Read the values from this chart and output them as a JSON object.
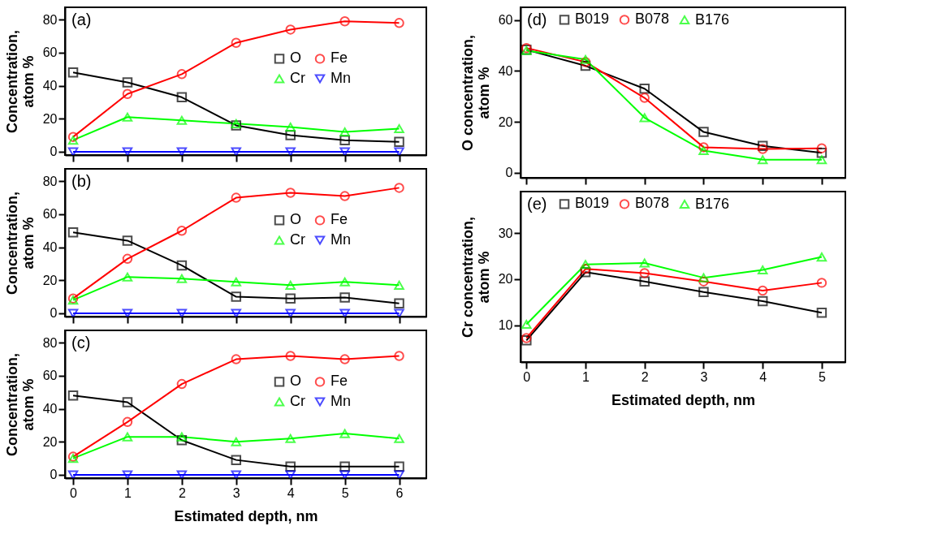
{
  "chart_data": [
    {
      "type": "line",
      "annotations": [
        "(a)"
      ],
      "ylabel": "Concentration, atom %",
      "x": [
        0,
        1,
        2,
        3,
        4,
        5,
        6
      ],
      "xlim": [
        -0.15,
        6.5
      ],
      "xticks": [
        0,
        1,
        2,
        3,
        4,
        5,
        6
      ],
      "ylim": [
        -2,
        87.5
      ],
      "yticks": [
        0,
        20,
        40,
        60,
        80
      ],
      "tick_labels": "y",
      "legend": "right",
      "grid": false,
      "line_style": "solid",
      "series": [
        {
          "name": "O",
          "color": "#000000",
          "marker": "square",
          "values": [
            48,
            42,
            33,
            16,
            10,
            7,
            6
          ]
        },
        {
          "name": "Fe",
          "color": "#ff0000",
          "marker": "circle",
          "values": [
            9,
            35,
            47,
            66,
            74,
            79,
            78
          ]
        },
        {
          "name": "Cr",
          "color": "#00ff00",
          "marker": "triangle",
          "values": [
            7,
            21,
            19,
            17,
            15,
            12,
            14
          ]
        },
        {
          "name": "Mn",
          "color": "#0000ff",
          "marker": "triangle-down",
          "values": [
            0,
            0,
            0,
            0,
            0,
            0,
            0
          ]
        }
      ]
    },
    {
      "type": "line",
      "annotations": [
        "(b)"
      ],
      "ylabel": "Concentration, atom %",
      "x": [
        0,
        1,
        2,
        3,
        4,
        5,
        6
      ],
      "xlim": [
        -0.15,
        6.5
      ],
      "xticks": [
        0,
        1,
        2,
        3,
        4,
        5,
        6
      ],
      "ylim": [
        -2,
        87.5
      ],
      "yticks": [
        0,
        20,
        40,
        60,
        80
      ],
      "tick_labels": "y",
      "legend": "right",
      "grid": false,
      "line_style": "solid",
      "series": [
        {
          "name": "O",
          "color": "#000000",
          "marker": "square",
          "values": [
            49,
            44,
            29,
            10,
            9,
            9.5,
            6
          ]
        },
        {
          "name": "Fe",
          "color": "#ff0000",
          "marker": "circle",
          "values": [
            9,
            33,
            50,
            70,
            73,
            71,
            76
          ]
        },
        {
          "name": "Cr",
          "color": "#00ff00",
          "marker": "triangle",
          "values": [
            8,
            22,
            21,
            19,
            17,
            19,
            17
          ]
        },
        {
          "name": "Mn",
          "color": "#0000ff",
          "marker": "triangle-down",
          "values": [
            0,
            0,
            0,
            0,
            0,
            0,
            0
          ]
        }
      ]
    },
    {
      "type": "line",
      "annotations": [
        "(c)"
      ],
      "ylabel": "Concentration, atom %",
      "xlabel": "Estimated depth, nm",
      "x": [
        0,
        1,
        2,
        3,
        4,
        5,
        6
      ],
      "xlim": [
        -0.15,
        6.5
      ],
      "xticks": [
        0,
        1,
        2,
        3,
        4,
        5,
        6
      ],
      "ylim": [
        -2,
        87.5
      ],
      "yticks": [
        0,
        20,
        40,
        60,
        80
      ],
      "legend": "right",
      "grid": false,
      "line_style": "solid",
      "series": [
        {
          "name": "O",
          "color": "#000000",
          "marker": "square",
          "values": [
            48,
            44,
            21,
            9,
            5,
            5,
            5
          ]
        },
        {
          "name": "Fe",
          "color": "#ff0000",
          "marker": "circle",
          "values": [
            11,
            32,
            55,
            70,
            72,
            70,
            72
          ]
        },
        {
          "name": "Cr",
          "color": "#00ff00",
          "marker": "triangle",
          "values": [
            10,
            23,
            23,
            20,
            22,
            25,
            22
          ]
        },
        {
          "name": "Mn",
          "color": "#0000ff",
          "marker": "triangle-down",
          "values": [
            0,
            0,
            0,
            0,
            0,
            0,
            0
          ]
        }
      ]
    },
    {
      "type": "line",
      "annotations": [
        "(d)"
      ],
      "ylabel": "O concentration, atom %",
      "x": [
        0,
        1,
        2,
        3,
        4,
        5
      ],
      "xlim": [
        -0.1,
        5.4
      ],
      "xticks": [
        0,
        1,
        2,
        3,
        4,
        5
      ],
      "ylim": [
        -2,
        65
      ],
      "yticks": [
        0,
        20,
        40,
        60
      ],
      "tick_labels": "y",
      "legend": "top",
      "grid": false,
      "line_style": "solid",
      "series": [
        {
          "name": "B019",
          "color": "#000000",
          "marker": "square",
          "values": [
            48.3,
            42,
            33,
            16,
            10.5,
            7.8
          ]
        },
        {
          "name": "B078",
          "color": "#ff0000",
          "marker": "circle",
          "values": [
            49,
            43.5,
            29.4,
            10,
            9.3,
            9.6
          ]
        },
        {
          "name": "B176",
          "color": "#00ff00",
          "marker": "triangle",
          "values": [
            48,
            44.5,
            21.6,
            8.7,
            5.1,
            5.1
          ]
        }
      ]
    },
    {
      "type": "line",
      "annotations": [
        "(e)"
      ],
      "ylabel": "Cr concentration, atom %",
      "xlabel": "Estimated depth, nm",
      "x": [
        0,
        1,
        2,
        3,
        4,
        5
      ],
      "xlim": [
        -0.1,
        5.4
      ],
      "xticks": [
        0,
        1,
        2,
        3,
        4,
        5
      ],
      "ylim": [
        2,
        39
      ],
      "yticks": [
        10,
        20,
        30
      ],
      "legend": "top",
      "grid": false,
      "line_style": "solid",
      "series": [
        {
          "name": "B019",
          "color": "#000000",
          "marker": "square",
          "values": [
            6.7,
            21.5,
            19.5,
            17.2,
            15.2,
            12.7
          ]
        },
        {
          "name": "B078",
          "color": "#ff0000",
          "marker": "circle",
          "values": [
            7.2,
            22.2,
            21.3,
            19.5,
            17.5,
            19.2
          ]
        },
        {
          "name": "B176",
          "color": "#00ff00",
          "marker": "triangle",
          "values": [
            10.2,
            23.2,
            23.5,
            20.3,
            22,
            24.8
          ]
        }
      ]
    }
  ]
}
